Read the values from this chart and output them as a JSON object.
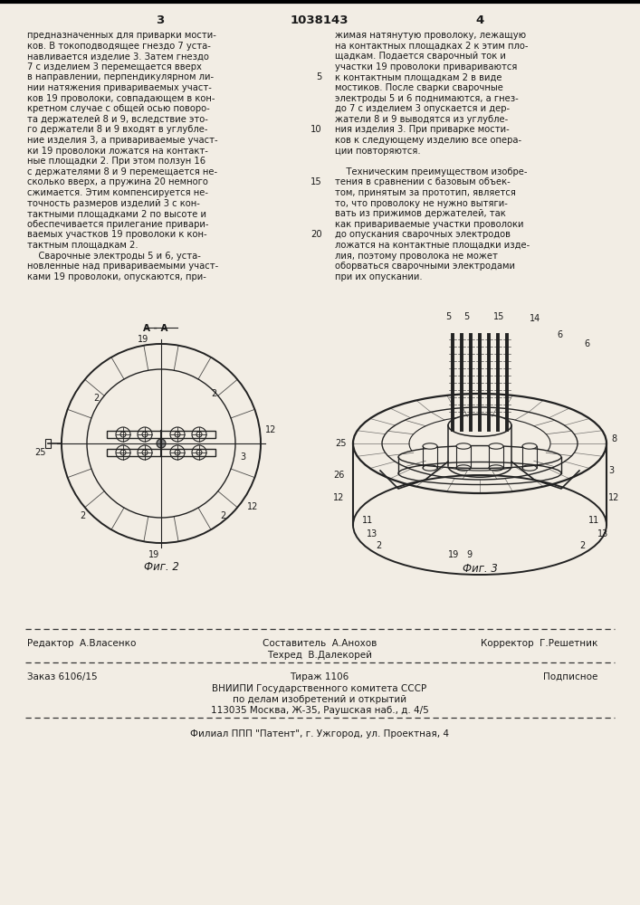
{
  "page_number_left": "3",
  "patent_number": "1038143",
  "page_number_right": "4",
  "column_left_text": [
    "предназначенных для приварки мости-",
    "ков. В токоподводящее гнездо 7 уста-",
    "навливается изделие 3. Затем гнездо",
    "7 с изделием 3 перемещается вверх",
    "в направлении, перпендикулярном ли-",
    "нии натяжения привариваемых участ-",
    "ков 19 проволоки, совпадающем в кон-",
    "кретном случае с общей осью поворо-",
    "та держателей 8 и 9, вследствие это-",
    "го держатели 8 и 9 входят в углубле-",
    "ние изделия 3, а привариваемые участ-",
    "ки 19 проволоки ложатся на контакт-",
    "ные площадки 2. При этом ползун 16",
    "с держателями 8 и 9 перемещается не-",
    "сколько вверх, а пружина 20 немного",
    "сжимается. Этим компенсируется не-",
    "точность размеров изделий 3 с кон-",
    "тактными площадками 2 по высоте и",
    "обеспечивается прилегание привари-",
    "ваемых участков 19 проволоки к кон-",
    "тактным площадкам 2.",
    "    Сварочные электроды 5 и 6, уста-",
    "новленные над привариваемыми участ-",
    "ками 19 проволоки, опускаются, при-"
  ],
  "column_right_text": [
    "жимая натянутую проволоку, лежащую",
    "на контактных площадках 2 к этим пло-",
    "щадкам. Подается сварочный ток и",
    "участки 19 проволоки привариваются",
    "к контактным площадкам 2 в виде",
    "мостиков. После сварки сварочные",
    "электроды 5 и 6 поднимаются, а гнез-",
    "до 7 с изделием 3 опускается и дер-",
    "жатели 8 и 9 выводятся из углубле-",
    "ния изделия 3. При приварке мости-",
    "ков к следующему изделию все опера-",
    "ции повторяются.",
    "",
    "    Техническим преимуществом изобре-",
    "тения в сравнении с базовым объек-",
    "том, принятым за прототип, является",
    "то, что проволоку не нужно вытяги-",
    "вать из прижимов держателей, так",
    "как привариваемые участки проволоки",
    "до опускания сварочных электродов",
    "ложатся на контактные площадки изде-",
    "лия, поэтому проволока не может",
    "оборваться сварочными электродами",
    "при их опускании."
  ],
  "fig2_caption": "Фиг. 2",
  "fig3_caption": "Фиг. 3",
  "footer_editor": "Редактор  А.Власенко",
  "footer_composer": "Составитель  А.Анохов",
  "footer_corrector": "Корректор  Г.Решетник",
  "footer_tech": "Техред  В.Далекорей",
  "footer_order": "Заказ 6106/15",
  "footer_tirazh": "Тираж 1106",
  "footer_podpisnoe": "Подписное",
  "footer_vniipie": "ВНИИПИ Государственного комитета СССР",
  "footer_po_delam": "по делам изобретений и открытий",
  "footer_address": "113035 Москва, Ж-35, Раушская наб., д. 4/5",
  "footer_filial": "Филиал ППП \"Патент\", г. Ужгород, ул. Проектная, 4",
  "bg_color": "#f2ede4",
  "text_color": "#1a1a1a",
  "line_color": "#222222"
}
